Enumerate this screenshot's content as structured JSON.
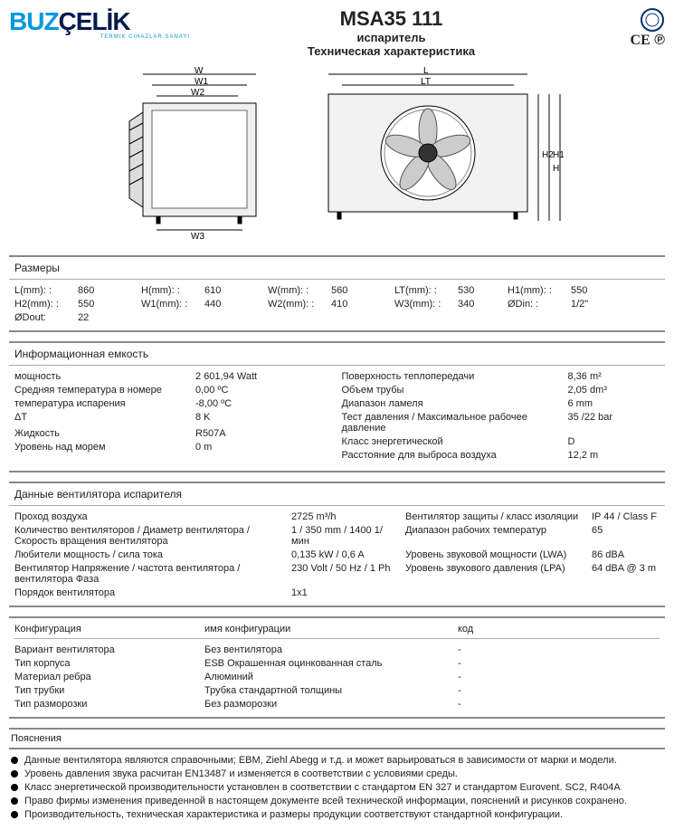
{
  "logo": {
    "part1": "BUZ",
    "part2": "ÇELİK",
    "sub": "TERMIK CIHAZLAR SANAYI"
  },
  "title": {
    "model": "MSA35 111",
    "sub1": "испаритель",
    "sub2": "Техническая характеристика"
  },
  "certs": {
    "ce": "CE",
    "other": "℗"
  },
  "drawings": {
    "w_labels": [
      "W",
      "W1",
      "W2",
      "W3"
    ],
    "l_labels": [
      "L",
      "LT",
      "H",
      "H1",
      "H2"
    ]
  },
  "sections": {
    "dims": {
      "title": "Размеры",
      "rows": [
        [
          "L(mm): :",
          "860",
          "H(mm): :",
          "610",
          "W(mm): :",
          "560",
          "LT(mm): :",
          "530",
          "H1(mm): :",
          "550"
        ],
        [
          "H2(mm): :",
          "550",
          "W1(mm): :",
          "440",
          "W2(mm): :",
          "410",
          "W3(mm): :",
          "340",
          "ØDin: :",
          "1/2\""
        ],
        [
          "ØDout:",
          "22",
          "",
          "",
          "",
          "",
          "",
          "",
          "",
          ""
        ]
      ]
    },
    "info": {
      "title": "Информационная емкость",
      "left": [
        [
          "мощность",
          "2 601,94 Watt"
        ],
        [
          "Средняя температура в номере",
          "0,00 ºC"
        ],
        [
          "температура испарения",
          "-8,00 ºC"
        ],
        [
          "ΔT",
          "8 K"
        ],
        [
          "",
          ""
        ],
        [
          "Жидкость",
          "R507A"
        ],
        [
          "Уровень над морем",
          "0 m"
        ]
      ],
      "right": [
        [
          "Поверхность теплопередачи",
          "8,36 m²"
        ],
        [
          "Объем трубы",
          "2,05 dm³"
        ],
        [
          "Диапазон ламеля",
          "6 mm"
        ],
        [
          "Тест давления / Максимальное рабочее давление",
          "35 /22 bar"
        ],
        [
          "Класс энергетической",
          "D"
        ],
        [
          "Расстояние для выброса воздуха",
          "12,2 m"
        ]
      ]
    },
    "fan": {
      "title": "Данные вентилятора испарителя",
      "rows": [
        [
          "Проход воздуха",
          "2725 m³/h",
          "Вентилятор защиты / класс изоляции",
          "IP 44 / Class F"
        ],
        [
          "Количество вентиляторов / Диаметр вентилятора / Скорость вращения вентилятора",
          "1 / 350 mm / 1400 1/мин",
          "Диапазон рабочих температур",
          "65"
        ],
        [
          "Любители мощность / сила тока",
          "0,135 kW / 0,6 A",
          "Уровень звуковой мощности (LWA)",
          "86 dBA"
        ],
        [
          "Вентилятор Напряжение / частота вентилятора / вентилятора Фаза",
          "230 Volt / 50 Hz / 1 Ph",
          "Уровень звукового давления (LPA)",
          "64 dBA @ 3 m"
        ],
        [
          "Порядок вентилятора",
          "1x1",
          "",
          ""
        ]
      ]
    },
    "config": {
      "headers": [
        "Конфигурация",
        "имя конфигурации",
        "код"
      ],
      "rows": [
        [
          "Вариант вентилятора",
          "Без вентилятора",
          "-"
        ],
        [
          "Тип корпуса",
          "ESB Окрашенная оцинкованная сталь",
          "-"
        ],
        [
          "Материал ребра",
          "Алюминий",
          "-"
        ],
        [
          "Тип трубки",
          "Трубка стандартной толщины",
          "-"
        ],
        [
          "Тип разморозки",
          "Без разморозки",
          "-"
        ]
      ]
    },
    "notes": {
      "title": "Пояснения",
      "lines": [
        "Данные вентилятора являются справочными; EBM, Ziehl Abegg и т.д. и может варьироваться в зависимости от марки и модели.",
        "Уровень давления звука расчитан EN13487 и изменяется в соответствии с условиями среды.",
        "Класс энергетической производительности установлен в соответствии с стандартом EN 327 и стандартом Eurovent. SC2, R404A",
        "Право фирмы изменения приведенной в настоящем документе всей технической информации, пояснений и рисунков сохранено.",
        "Производительность, техническая характеристика и размеры продукции соответствуют стандартной конфигурации."
      ]
    }
  }
}
